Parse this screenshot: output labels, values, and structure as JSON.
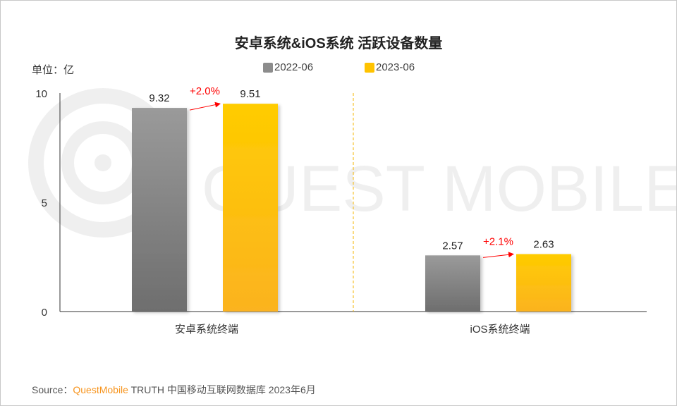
{
  "chart_data": {
    "type": "bar",
    "title": "安卓系统&iOS系统 活跃设备数量",
    "unit_label": "单位：亿",
    "categories": [
      "安卓系统终端",
      "iOS系统终端"
    ],
    "series": [
      {
        "name": "2022-06",
        "values": [
          9.32,
          2.57
        ],
        "color": "#8c8c8c"
      },
      {
        "name": "2023-06",
        "values": [
          9.51,
          2.63
        ],
        "color": "#ffc300"
      }
    ],
    "growth_labels": [
      "+2.0%",
      "+2.1%"
    ],
    "growth_color": "#ff0000",
    "yticks": [
      0,
      5,
      10
    ],
    "ylim": [
      0,
      10
    ],
    "legend_position": "top",
    "grid": false
  },
  "watermark": "QUEST MOBILE",
  "source": {
    "prefix": "Source：",
    "brand": "QuestMobile",
    "rest": "TRUTH 中国移动互联网数据库 2023年6月"
  }
}
